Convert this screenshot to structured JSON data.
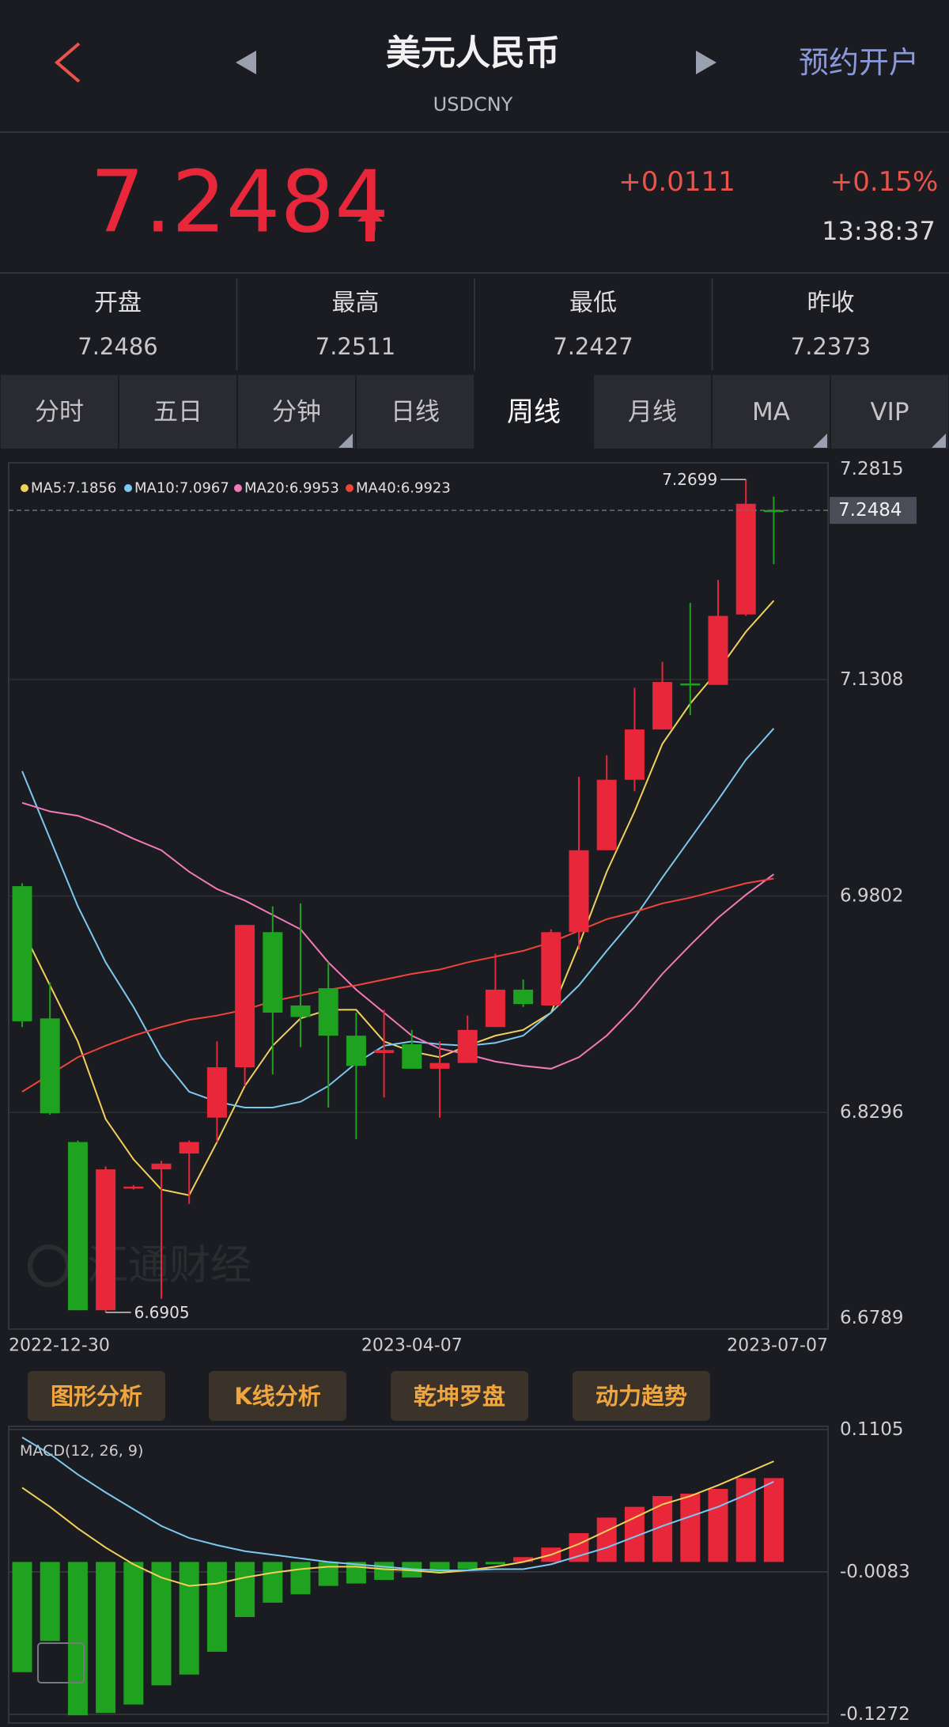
{
  "header": {
    "title": "美元人民币",
    "subtitle": "USDCNY",
    "action": "预约开户"
  },
  "quote": {
    "price": "7.2484",
    "change": "+0.0111",
    "change_percent": "+0.15%",
    "time": "13:38:37"
  },
  "stats": [
    {
      "label": "开盘",
      "value": "7.2486"
    },
    {
      "label": "最高",
      "value": "7.2511"
    },
    {
      "label": "最低",
      "value": "7.2427"
    },
    {
      "label": "昨收",
      "value": "7.2373"
    }
  ],
  "tabs": [
    "分时",
    "五日",
    "分钟",
    "日线",
    "周线",
    "月线",
    "MA",
    "VIP"
  ],
  "selected_tab": 4,
  "chart_data": [
    {
      "type": "candlestick",
      "categories": [
        "2022-12-30",
        null,
        null,
        null,
        null,
        null,
        null,
        null,
        null,
        null,
        null,
        null,
        null,
        null,
        "2023-04-07",
        null,
        null,
        null,
        null,
        null,
        null,
        null,
        null,
        null,
        null,
        null,
        null,
        "2023-07-07"
      ],
      "open": [
        6.987,
        6.895,
        6.809,
        6.692,
        6.777,
        6.79,
        6.801,
        6.826,
        6.861,
        6.955,
        6.904,
        6.916,
        6.883,
        6.871,
        6.877,
        6.86,
        6.864,
        6.889,
        6.915,
        6.904,
        6.955,
        7.012,
        7.061,
        7.096,
        7.128,
        7.127,
        7.176,
        7.2486
      ],
      "close": [
        6.893,
        6.829,
        6.692,
        6.79,
        6.778,
        6.794,
        6.809,
        6.861,
        6.96,
        6.899,
        6.896,
        6.883,
        6.862,
        6.873,
        6.86,
        6.864,
        6.887,
        6.915,
        6.905,
        6.955,
        7.012,
        7.061,
        7.096,
        7.129,
        7.127,
        7.175,
        7.253,
        7.2484
      ],
      "high": [
        6.989,
        6.92,
        6.81,
        6.792,
        6.779,
        6.796,
        6.81,
        6.879,
        6.96,
        6.973,
        6.975,
        6.934,
        6.899,
        6.901,
        6.887,
        6.879,
        6.897,
        6.94,
        6.922,
        6.957,
        7.063,
        7.078,
        7.125,
        7.143,
        7.184,
        7.2,
        7.2699,
        7.258
      ],
      "low": [
        6.889,
        6.828,
        6.692,
        6.6905,
        6.776,
        6.7,
        6.766,
        6.809,
        6.848,
        6.856,
        6.875,
        6.833,
        6.811,
        6.84,
        6.86,
        6.826,
        6.864,
        6.889,
        6.903,
        6.904,
        6.943,
        7.012,
        7.053,
        7.096,
        7.106,
        7.127,
        7.175,
        7.211
      ],
      "up_color": "#e8273a",
      "down_color": "#1fa21f",
      "series": [
        {
          "name": "MA5:7.1856",
          "color": "#f2d15b",
          "values": [
            6.957,
            6.918,
            6.879,
            6.825,
            6.797,
            6.776,
            6.772,
            6.809,
            6.848,
            6.876,
            6.895,
            6.901,
            6.901,
            6.879,
            6.872,
            6.868,
            6.876,
            6.883,
            6.887,
            6.899,
            6.946,
            6.997,
            7.039,
            7.086,
            7.114,
            7.137,
            7.164,
            7.1856
          ]
        },
        {
          "name": "MA10:7.0967",
          "color": "#7cc8f0",
          "values": [
            7.067,
            7.02,
            6.973,
            6.934,
            6.903,
            6.868,
            6.844,
            6.837,
            6.833,
            6.833,
            6.837,
            6.848,
            6.864,
            6.876,
            6.879,
            6.877,
            6.876,
            6.878,
            6.883,
            6.899,
            6.918,
            6.942,
            6.965,
            6.993,
            7.02,
            7.047,
            7.075,
            7.0967
          ]
        },
        {
          "name": "MA20:6.9953",
          "color": "#f07bb8",
          "values": [
            7.045,
            7.039,
            7.036,
            7.029,
            7.02,
            7.012,
            6.997,
            6.985,
            6.977,
            6.967,
            6.957,
            6.934,
            6.915,
            6.899,
            6.883,
            6.874,
            6.87,
            6.865,
            6.862,
            6.86,
            6.868,
            6.883,
            6.903,
            6.926,
            6.946,
            6.965,
            6.981,
            6.9953
          ]
        },
        {
          "name": "MA40:6.9923",
          "color": "#f0443a",
          "values": [
            6.844,
            6.856,
            6.868,
            6.876,
            6.883,
            6.889,
            6.894,
            6.897,
            6.901,
            6.907,
            6.911,
            6.915,
            6.918,
            6.922,
            6.926,
            6.929,
            6.934,
            6.938,
            6.942,
            6.948,
            6.956,
            6.964,
            6.969,
            6.975,
            6.979,
            6.984,
            6.989,
            6.9923
          ]
        }
      ],
      "ylim": [
        6.6789,
        7.2815
      ],
      "yticks": [
        7.2815,
        7.1308,
        6.9802,
        6.8296,
        6.6789
      ],
      "grid": true
    },
    {
      "type": "macd",
      "title": "MACD(12, 26, 9)",
      "values": [
        -0.092,
        -0.066,
        -0.128,
        -0.126,
        -0.119,
        -0.103,
        -0.094,
        -0.075,
        -0.046,
        -0.034,
        -0.027,
        -0.02,
        -0.018,
        -0.015,
        -0.013,
        -0.009,
        -0.006,
        -0.002,
        0.004,
        0.012,
        0.024,
        0.037,
        0.046,
        0.055,
        0.057,
        0.061,
        0.07,
        0.07
      ],
      "up_color": "#e8273a",
      "down_color": "#1fa21f",
      "series": [
        {
          "color": "#f2d15b",
          "values": [
            0.062,
            0.046,
            0.028,
            0.012,
            -0.002,
            -0.013,
            -0.02,
            -0.018,
            -0.013,
            -0.009,
            -0.006,
            -0.004,
            -0.004,
            -0.006,
            -0.007,
            -0.009,
            -0.007,
            -0.004,
            0.0,
            0.006,
            0.015,
            0.026,
            0.037,
            0.048,
            0.055,
            0.064,
            0.074,
            0.084
          ]
        },
        {
          "color": "#7cc8f0",
          "values": [
            0.104,
            0.09,
            0.073,
            0.058,
            0.044,
            0.03,
            0.02,
            0.014,
            0.009,
            0.006,
            0.003,
            0.0,
            -0.002,
            -0.004,
            -0.006,
            -0.007,
            -0.007,
            -0.006,
            -0.006,
            -0.002,
            0.005,
            0.012,
            0.021,
            0.03,
            0.038,
            0.046,
            0.056,
            0.067
          ]
        }
      ],
      "ylim": [
        -0.1272,
        0.1105
      ],
      "yticks": [
        0.1105,
        -0.0083,
        -0.1272
      ],
      "grid": true
    }
  ],
  "tools": [
    "图形分析",
    "K线分析",
    "乾坤罗盘",
    "动力趋势"
  ],
  "watermark": "汇通财经"
}
